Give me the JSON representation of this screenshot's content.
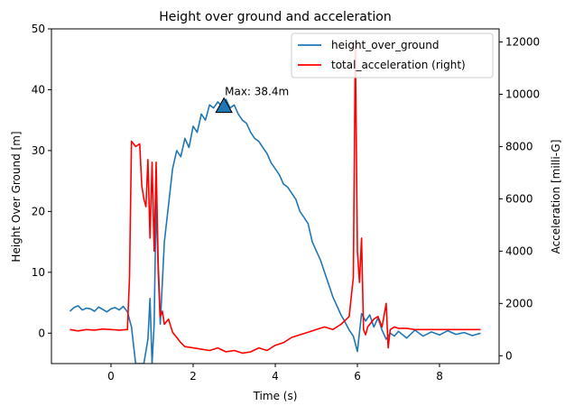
{
  "chart_data": {
    "type": "line",
    "title": "Height over ground and acceleration",
    "xlabel": "Time (s)",
    "ylabel": "Height Over Ground [m]",
    "y2label": "Acceleration [milli-G]",
    "xlim": [
      -1.45,
      9.45
    ],
    "ylim": [
      -5,
      50
    ],
    "y2lim": [
      -300,
      12500
    ],
    "xticks": [
      0,
      2,
      4,
      6,
      8
    ],
    "yticks": [
      0,
      10,
      20,
      30,
      40,
      50
    ],
    "y2ticks": [
      0,
      2000,
      4000,
      6000,
      8000,
      10000,
      12000
    ],
    "legend_position": "top-right",
    "annotation": {
      "text": "Max: 38.4m",
      "x": 2.75,
      "y": 37.3
    },
    "series": [
      {
        "name": "height_over_ground",
        "axis": "left",
        "color": "#1f77b4",
        "x": [
          -1.0,
          -0.9,
          -0.8,
          -0.7,
          -0.6,
          -0.5,
          -0.4,
          -0.3,
          -0.2,
          -0.1,
          0.0,
          0.1,
          0.2,
          0.3,
          0.4,
          0.5,
          0.6,
          0.7,
          0.8,
          0.9,
          0.95,
          1.0,
          1.05,
          1.1,
          1.15,
          1.2,
          1.3,
          1.4,
          1.5,
          1.6,
          1.7,
          1.8,
          1.9,
          2.0,
          2.1,
          2.2,
          2.3,
          2.4,
          2.5,
          2.6,
          2.7,
          2.8,
          2.9,
          3.0,
          3.1,
          3.2,
          3.3,
          3.4,
          3.5,
          3.6,
          3.7,
          3.8,
          3.9,
          4.0,
          4.1,
          4.2,
          4.3,
          4.4,
          4.5,
          4.6,
          4.7,
          4.8,
          4.9,
          5.0,
          5.1,
          5.2,
          5.3,
          5.4,
          5.5,
          5.6,
          5.7,
          5.8,
          5.9,
          6.0,
          6.1,
          6.2,
          6.3,
          6.4,
          6.5,
          6.6,
          6.7,
          6.8,
          6.9,
          7.0,
          7.2,
          7.4,
          7.6,
          7.8,
          8.0,
          8.2,
          8.4,
          8.6,
          8.8,
          9.0
        ],
        "y": [
          3.6,
          4.2,
          4.5,
          3.8,
          4.1,
          4.0,
          3.6,
          4.3,
          3.9,
          3.5,
          4.0,
          4.2,
          3.8,
          4.4,
          3.5,
          1.0,
          -5,
          -5,
          -5,
          -1,
          5.7,
          -5,
          1.5,
          22.0,
          10.0,
          1.5,
          15.0,
          21.0,
          27.0,
          30.0,
          29.0,
          32.0,
          30.5,
          34.0,
          33.0,
          36.0,
          35.0,
          37.5,
          37.0,
          38.0,
          37.3,
          38.4,
          37.0,
          37.5,
          36.0,
          35.0,
          34.5,
          33.0,
          32.0,
          31.5,
          30.5,
          29.5,
          28.0,
          27.0,
          26.0,
          24.5,
          24.0,
          23.0,
          22.0,
          20.0,
          19.0,
          18.0,
          15.0,
          13.5,
          12.0,
          10.0,
          8.0,
          6.0,
          4.5,
          3.0,
          1.8,
          0.5,
          -0.5,
          -3.0,
          3.2,
          2.0,
          3.0,
          1.0,
          2.5,
          0.5,
          -1.0,
          0.0,
          -0.5,
          0.3,
          -0.8,
          0.5,
          -0.5,
          0.2,
          -0.3,
          0.4,
          -0.2,
          0.1,
          -0.4,
          0.0
        ]
      },
      {
        "name": "total_acceleration (right)",
        "axis": "right",
        "color": "#ff0000",
        "x": [
          -1.0,
          -0.8,
          -0.6,
          -0.4,
          -0.2,
          0.0,
          0.2,
          0.4,
          0.45,
          0.5,
          0.6,
          0.7,
          0.75,
          0.8,
          0.85,
          0.9,
          0.95,
          1.0,
          1.05,
          1.1,
          1.15,
          1.2,
          1.25,
          1.3,
          1.35,
          1.4,
          1.5,
          1.6,
          1.7,
          1.8,
          2.0,
          2.2,
          2.4,
          2.6,
          2.8,
          3.0,
          3.2,
          3.4,
          3.6,
          3.8,
          4.0,
          4.2,
          4.4,
          4.6,
          4.8,
          5.0,
          5.2,
          5.4,
          5.6,
          5.8,
          5.9,
          5.95,
          6.0,
          6.05,
          6.1,
          6.15,
          6.2,
          6.25,
          6.3,
          6.4,
          6.5,
          6.6,
          6.7,
          6.75,
          6.8,
          6.9,
          7.0,
          7.2,
          7.4,
          7.6,
          7.8,
          8.0,
          8.2,
          8.4,
          8.6,
          8.8,
          9.0
        ],
        "y": [
          1000,
          950,
          1000,
          980,
          1020,
          1000,
          980,
          1000,
          3000,
          8200,
          8000,
          8100,
          6500,
          6000,
          5700,
          7500,
          4500,
          7400,
          4000,
          7400,
          3500,
          1500,
          1700,
          1200,
          1300,
          1400,
          900,
          700,
          500,
          350,
          300,
          250,
          200,
          300,
          150,
          200,
          100,
          150,
          300,
          200,
          400,
          500,
          700,
          800,
          900,
          1000,
          1100,
          1000,
          1200,
          1500,
          3000,
          12000,
          4000,
          2800,
          4500,
          1000,
          800,
          1100,
          1200,
          1400,
          1500,
          1100,
          2000,
          300,
          1000,
          1100,
          1050,
          1050,
          1000,
          1000,
          1000,
          1000,
          1000,
          1000,
          1000,
          1000,
          1000
        ]
      }
    ]
  }
}
